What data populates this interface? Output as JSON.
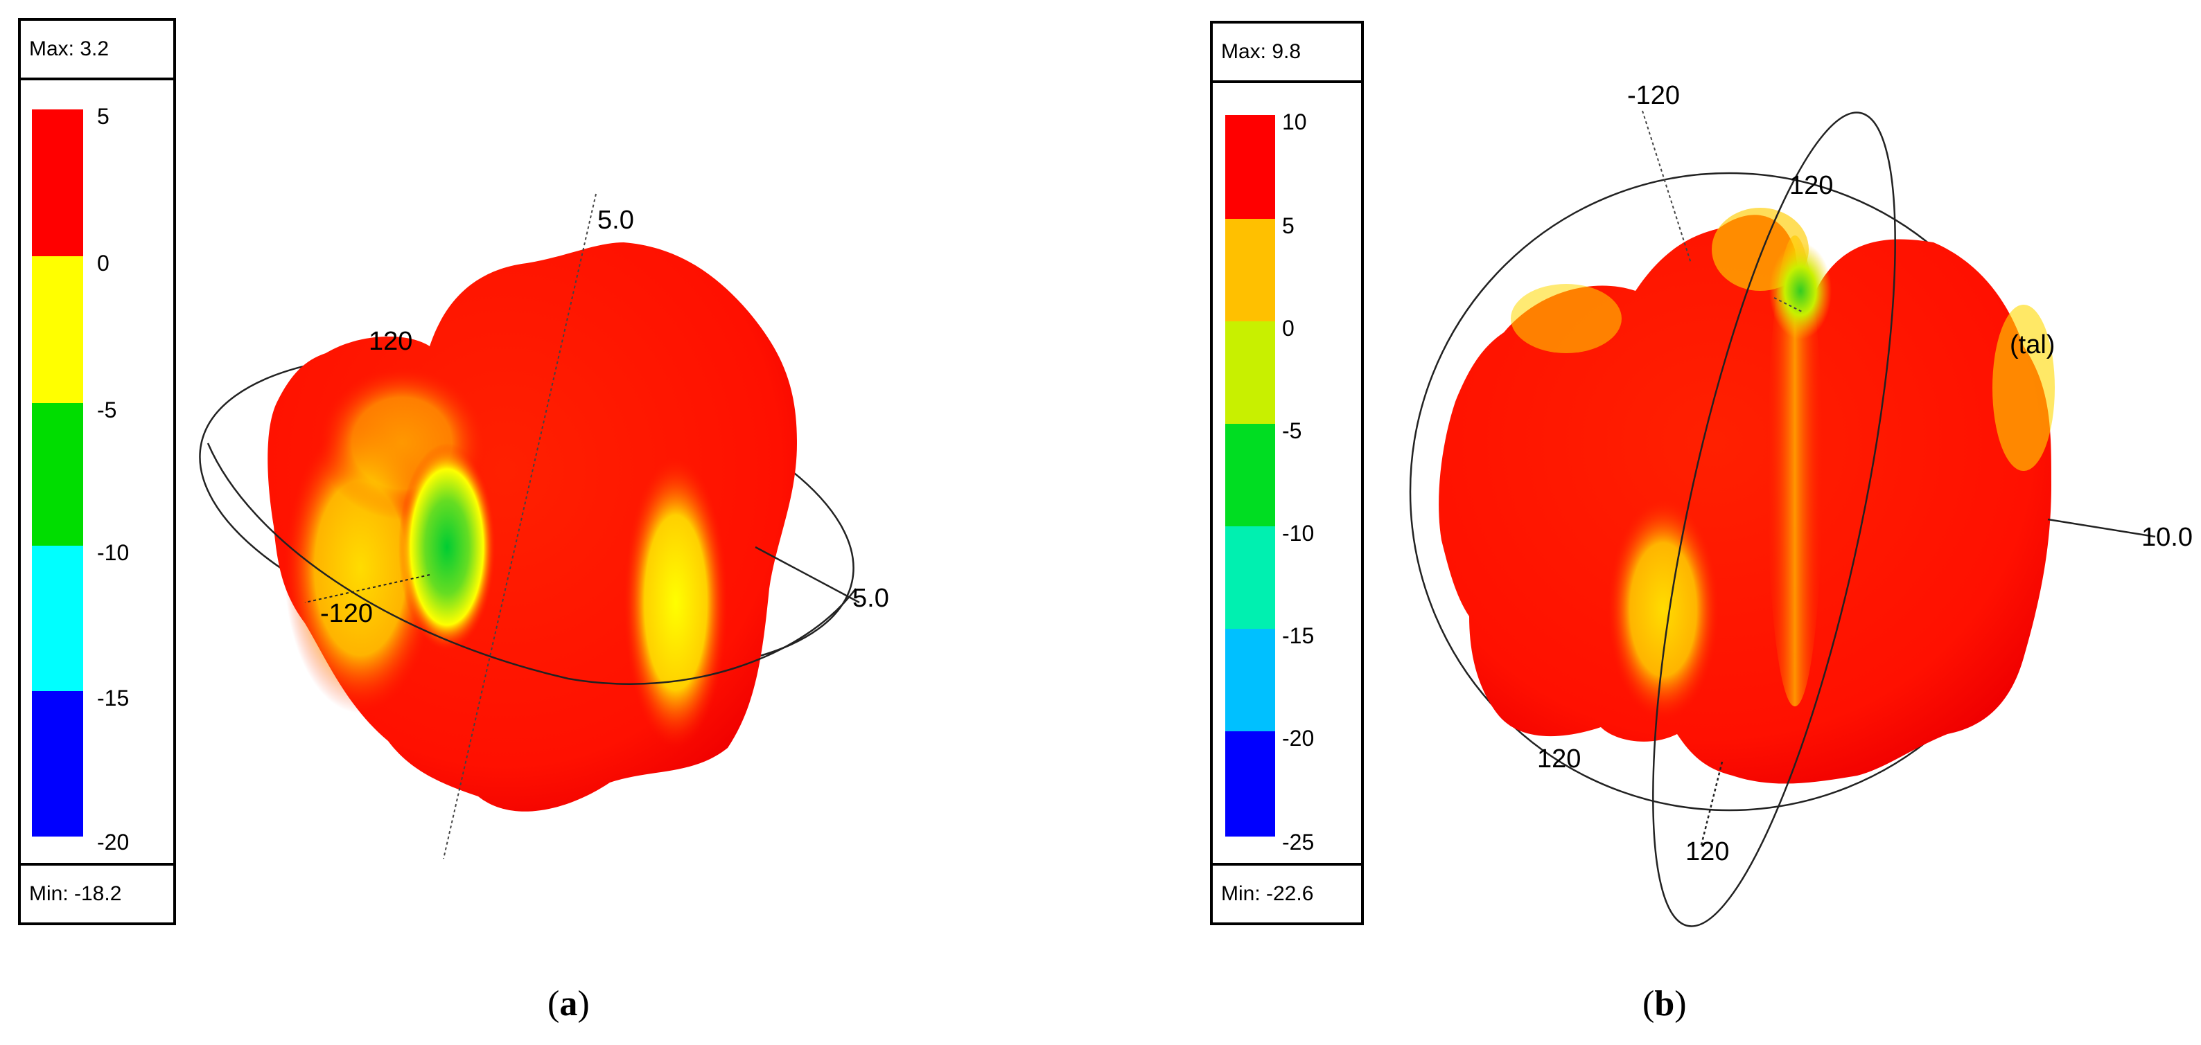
{
  "panels": [
    {
      "id": "a",
      "label": "a",
      "legend": {
        "max_label": "Max: 3.2",
        "min_label": "Min: -18.2",
        "bands": [
          {
            "tick": "5",
            "color": "#ff0000"
          },
          {
            "tick": "0",
            "color": "#ffff00"
          },
          {
            "tick": "-5",
            "color": "#00dd00"
          },
          {
            "tick": "-10",
            "color": "#00ffff"
          },
          {
            "tick": "-15",
            "color": "#0000ff"
          }
        ],
        "bottom_tick": "-20"
      },
      "axis_labels": {
        "upper": "5.0",
        "right": "5.0",
        "left_upper": "120",
        "left_lower": "-120"
      }
    },
    {
      "id": "b",
      "label": "b",
      "legend": {
        "max_label": "Max: 9.8",
        "min_label": "Min: -22.6",
        "bands": [
          {
            "tick": "10",
            "color": "#ff0000"
          },
          {
            "tick": "5",
            "color": "#ffc000"
          },
          {
            "tick": "0",
            "color": "#c8f000"
          },
          {
            "tick": "-5",
            "color": "#00dd22"
          },
          {
            "tick": "-10",
            "color": "#00f0b0"
          },
          {
            "tick": "-15",
            "color": "#00c0ff"
          },
          {
            "tick": "-20",
            "color": "#0000ff"
          }
        ],
        "bottom_tick": "-25"
      },
      "axis_labels": {
        "top": "-120",
        "inner_top": "120",
        "right": "10.0",
        "right_frag": "(tal)",
        "left_bottom": "120",
        "bottom": "120"
      }
    }
  ]
}
